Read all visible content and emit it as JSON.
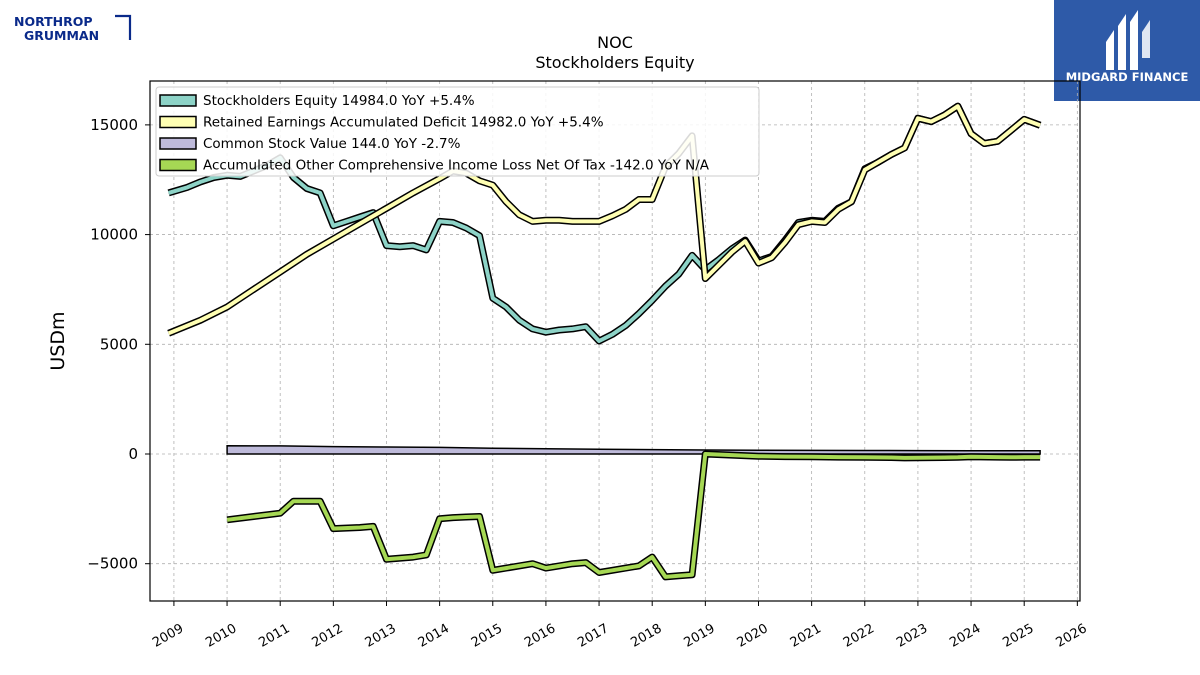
{
  "brand": {
    "left_logo_line1": "NORTHROP",
    "left_logo_line2": "GRUMMAN",
    "right_logo_text": "MIDGARD FINANCE",
    "left_logo_color": "#0a2a8a",
    "right_logo_bg": "#2e5aa8"
  },
  "chart_data": {
    "type": "line",
    "title": "NOC",
    "subtitle": "Stockholders  Equity",
    "ylabel": "USDm",
    "xlabel": "",
    "xlim": [
      2008.55,
      2026.05
    ],
    "ylim": [
      -6700,
      17000
    ],
    "yticks": [
      -5000,
      0,
      5000,
      10000,
      15000
    ],
    "xticks": [
      2009,
      2010,
      2011,
      2012,
      2013,
      2014,
      2015,
      2016,
      2017,
      2018,
      2019,
      2020,
      2021,
      2022,
      2023,
      2024,
      2025,
      2026
    ],
    "grid": true,
    "legend_position": "top-left",
    "series": [
      {
        "name": "Stockholders Equity  14984.0 YoY +5.4%",
        "color": "#8dd3c7",
        "x": [
          2008.9,
          2009.25,
          2009.5,
          2009.75,
          2010.0,
          2010.25,
          2010.5,
          2010.75,
          2011.0,
          2011.25,
          2011.5,
          2011.75,
          2012.0,
          2012.25,
          2012.5,
          2012.75,
          2013.0,
          2013.25,
          2013.5,
          2013.75,
          2014.0,
          2014.25,
          2014.5,
          2014.75,
          2015.0,
          2015.25,
          2015.5,
          2015.75,
          2016.0,
          2016.25,
          2016.5,
          2016.75,
          2017.0,
          2017.25,
          2017.5,
          2017.75,
          2018.0,
          2018.25,
          2018.5,
          2018.75,
          2019.0,
          2019.25,
          2019.5,
          2019.75,
          2020.0,
          2020.25,
          2020.5,
          2020.75,
          2021.0,
          2021.25,
          2021.5,
          2021.75,
          2022.0,
          2022.25,
          2022.5,
          2022.75,
          2023.0,
          2023.25,
          2023.5,
          2023.75,
          2024.0,
          2024.25,
          2024.5,
          2024.75,
          2025.0,
          2025.3
        ],
        "values": [
          11900,
          12150,
          12400,
          12600,
          12700,
          12650,
          12900,
          13150,
          13500,
          12600,
          12100,
          11900,
          10400,
          10600,
          10800,
          11000,
          9500,
          9450,
          9500,
          9300,
          10600,
          10550,
          10300,
          9950,
          7100,
          6700,
          6100,
          5700,
          5550,
          5650,
          5700,
          5800,
          5150,
          5450,
          5850,
          6400,
          7000,
          7650,
          8200,
          9050,
          8400,
          8850,
          9350,
          9750,
          8800,
          9000,
          9750,
          10550,
          10650,
          10600,
          11200,
          11500,
          13000,
          13300,
          13650,
          13950,
          15300,
          15150,
          15450,
          15850,
          14600,
          14150,
          14250,
          14750,
          15250,
          14984
        ]
      },
      {
        "name": "Retained Earnings Accumulated Deficit  14982.0 YoY +5.4%",
        "color": "#ffffb3",
        "x": [
          2008.9,
          2009.5,
          2010.0,
          2010.5,
          2011.0,
          2011.5,
          2012.0,
          2012.5,
          2013.0,
          2013.5,
          2014.0,
          2014.25,
          2014.5,
          2014.75,
          2015.0,
          2015.25,
          2015.5,
          2015.75,
          2016.0,
          2016.25,
          2016.5,
          2016.75,
          2017.0,
          2017.25,
          2017.5,
          2017.75,
          2018.0,
          2018.25,
          2018.5,
          2018.75,
          2019.0,
          2019.25,
          2019.5,
          2019.75,
          2020.0,
          2020.25,
          2020.5,
          2020.75,
          2021.0,
          2021.25,
          2021.5,
          2021.75,
          2022.0,
          2022.25,
          2022.5,
          2022.75,
          2023.0,
          2023.25,
          2023.5,
          2023.75,
          2024.0,
          2024.25,
          2024.5,
          2024.75,
          2025.0,
          2025.3
        ],
        "values": [
          5500,
          6100,
          6700,
          7500,
          8300,
          9100,
          9800,
          10500,
          11200,
          11900,
          12550,
          12900,
          12800,
          12450,
          12250,
          11500,
          10900,
          10600,
          10650,
          10650,
          10600,
          10600,
          10600,
          10850,
          11150,
          11600,
          11600,
          13100,
          13700,
          14500,
          8000,
          8600,
          9200,
          9700,
          8700,
          8950,
          9650,
          10450,
          10600,
          10550,
          11150,
          11500,
          12950,
          13300,
          13650,
          13950,
          15300,
          15150,
          15450,
          15850,
          14600,
          14150,
          14250,
          14750,
          15250,
          14982
        ]
      },
      {
        "name": "Common Stock Value  144.0 YoY -2.7%",
        "color": "#bebada",
        "x": [
          2010.0,
          2011.0,
          2012.0,
          2013.0,
          2014.0,
          2015.0,
          2016.0,
          2017.0,
          2018.0,
          2019.0,
          2020.0,
          2021.0,
          2022.0,
          2023.0,
          2024.0,
          2025.3
        ],
        "values": [
          375,
          370,
          335,
          320,
          300,
          265,
          235,
          215,
          200,
          180,
          170,
          165,
          160,
          155,
          150,
          144
        ],
        "draw": "band"
      },
      {
        "name": "Accumulated Other Comprehensive Income Loss Net Of Tax  -142.0 YoY N/A",
        "color": "#a6d854",
        "x": [
          2010.0,
          2010.5,
          2011.0,
          2011.25,
          2011.5,
          2011.75,
          2012.0,
          2012.5,
          2012.75,
          2013.0,
          2013.5,
          2013.75,
          2014.0,
          2014.25,
          2014.5,
          2014.75,
          2015.0,
          2015.25,
          2015.5,
          2015.75,
          2016.0,
          2016.25,
          2016.5,
          2016.75,
          2017.0,
          2017.25,
          2017.5,
          2017.75,
          2018.0,
          2018.25,
          2018.5,
          2018.75,
          2019.0,
          2019.5,
          2020.0,
          2020.5,
          2021.0,
          2021.5,
          2022.0,
          2022.5,
          2022.75,
          2023.0,
          2023.5,
          2023.75,
          2024.0,
          2024.5,
          2024.75,
          2025.0,
          2025.3
        ],
        "values": [
          -3000,
          -2850,
          -2700,
          -2150,
          -2150,
          -2150,
          -3400,
          -3350,
          -3300,
          -4800,
          -4700,
          -4600,
          -2950,
          -2900,
          -2870,
          -2850,
          -5300,
          -5200,
          -5100,
          -5000,
          -5200,
          -5100,
          -5000,
          -4950,
          -5400,
          -5300,
          -5200,
          -5100,
          -4700,
          -5600,
          -5550,
          -5500,
          0,
          -50,
          -100,
          -120,
          -130,
          -140,
          -150,
          -160,
          -180,
          -170,
          -160,
          -150,
          -130,
          -140,
          -150,
          -140,
          -142
        ]
      }
    ]
  }
}
